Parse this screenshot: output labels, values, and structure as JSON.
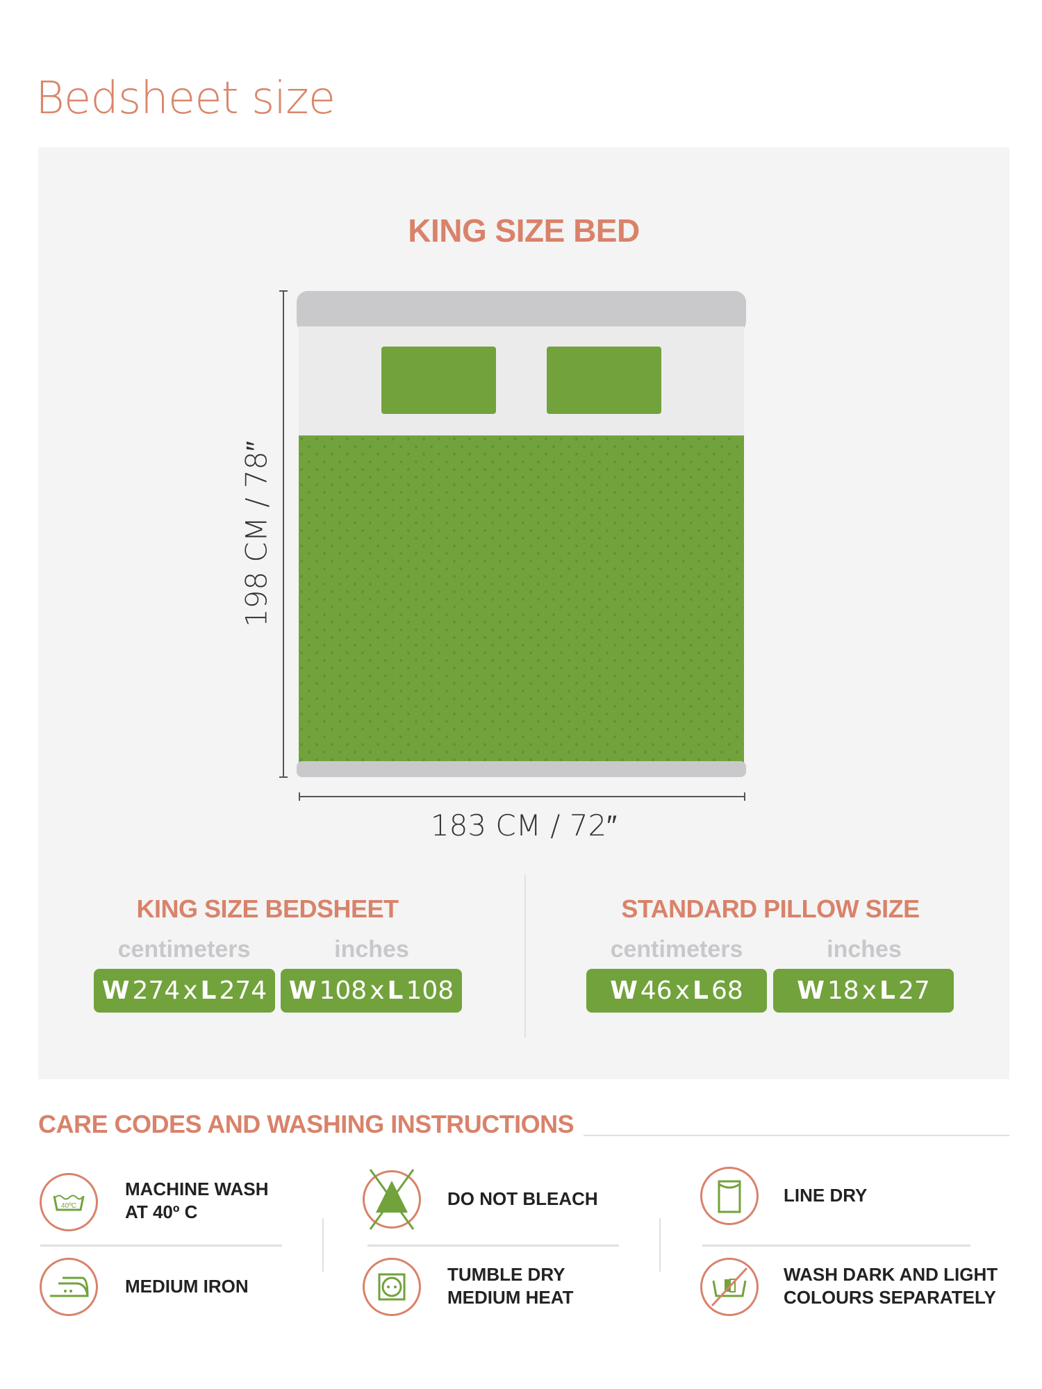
{
  "title": "Bedsheet size",
  "bed": {
    "heading": "KING SIZE BED",
    "length_label": "198 CM / 78″",
    "width_label": "183 CM / 72″"
  },
  "bedsheet": {
    "heading": "KING SIZE BEDSHEET",
    "units": [
      "centimeters",
      "inches"
    ],
    "sizes": [
      {
        "w_label": "W",
        "w": "274",
        "x": "x",
        "l_label": "L",
        "l": "274"
      },
      {
        "w_label": "W",
        "w": "108",
        "x": "x",
        "l_label": "L",
        "l": "108"
      }
    ]
  },
  "pillow": {
    "heading": "STANDARD PILLOW SIZE",
    "units": [
      "centimeters",
      "inches"
    ],
    "sizes": [
      {
        "w_label": "W",
        "w": "46",
        "x": "x",
        "l_label": "L",
        "l": "68"
      },
      {
        "w_label": "W",
        "w": "18",
        "x": "x",
        "l_label": "L",
        "l": "27"
      }
    ]
  },
  "care": {
    "heading": "CARE CODES AND WASHING INSTRUCTIONS",
    "items": [
      {
        "icon": "machine-wash-40-icon",
        "line1": "MACHINE WASH",
        "line2": "AT 40º C",
        "icon_text": "40ºC"
      },
      {
        "icon": "do-not-bleach-icon",
        "line1": "DO NOT BLEACH",
        "line2": ""
      },
      {
        "icon": "line-dry-icon",
        "line1": "LINE DRY",
        "line2": ""
      },
      {
        "icon": "medium-iron-icon",
        "line1": "MEDIUM IRON",
        "line2": ""
      },
      {
        "icon": "tumble-dry-medium-icon",
        "line1": "TUMBLE DRY",
        "line2": "MEDIUM HEAT"
      },
      {
        "icon": "wash-separately-icon",
        "line1": "WASH DARK AND LIGHT",
        "line2": "COLOURS SEPARATELY"
      }
    ]
  },
  "colors": {
    "accent": "#d9826a",
    "green": "#72a23c",
    "panel": "#f4f4f4"
  }
}
